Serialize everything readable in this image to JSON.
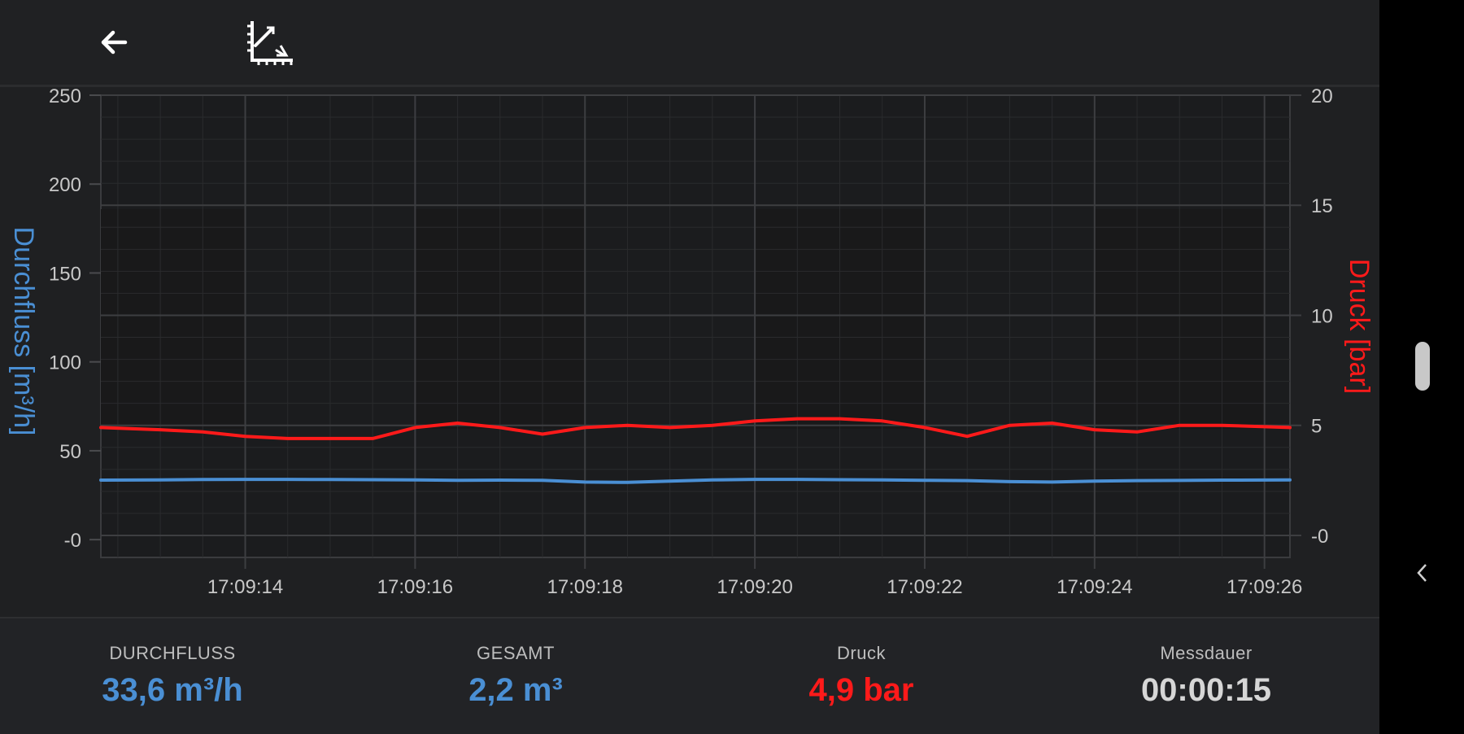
{
  "toolbar": {
    "back_icon": "arrow-left-icon",
    "axes_icon": "chart-axes-icon"
  },
  "colors": {
    "flow": "#4a8fd4",
    "pressure": "#ff1a1a",
    "value_neutral": "#d6d6d6"
  },
  "chart_data": {
    "type": "line",
    "x": [
      "17:09:12.3",
      "17:09:13.0",
      "17:09:13.5",
      "17:09:14.0",
      "17:09:14.5",
      "17:09:15.0",
      "17:09:15.5",
      "17:09:16.0",
      "17:09:16.5",
      "17:09:17.0",
      "17:09:17.5",
      "17:09:18.0",
      "17:09:18.5",
      "17:09:19.0",
      "17:09:19.5",
      "17:09:20.0",
      "17:09:20.5",
      "17:09:21.0",
      "17:09:21.5",
      "17:09:22.0",
      "17:09:22.5",
      "17:09:23.0",
      "17:09:23.5",
      "17:09:24.0",
      "17:09:24.5",
      "17:09:25.0",
      "17:09:25.5",
      "17:09:26.3"
    ],
    "x_ticks": [
      "17:09:14",
      "17:09:16",
      "17:09:18",
      "17:09:20",
      "17:09:22",
      "17:09:24",
      "17:09:26"
    ],
    "series": [
      {
        "name": "Durchfluss [m³/h]",
        "axis": "left",
        "values": [
          33.5,
          33.6,
          33.8,
          33.9,
          33.9,
          33.8,
          33.7,
          33.6,
          33.4,
          33.5,
          33.4,
          32.4,
          32.2,
          32.9,
          33.6,
          33.9,
          33.9,
          33.7,
          33.6,
          33.4,
          33.2,
          32.6,
          32.4,
          32.9,
          33.2,
          33.3,
          33.5,
          33.6
        ]
      },
      {
        "name": "Druck [bar]",
        "axis": "right",
        "values": [
          4.9,
          4.8,
          4.7,
          4.5,
          4.4,
          4.4,
          4.4,
          4.9,
          5.1,
          4.9,
          4.6,
          4.9,
          5.0,
          4.9,
          5.0,
          5.2,
          5.3,
          5.3,
          5.2,
          4.9,
          4.5,
          5.0,
          5.1,
          4.8,
          4.7,
          5.0,
          5.0,
          4.9
        ]
      }
    ],
    "left_axis": {
      "label": "Durchfluss [m³/h]",
      "ylim": [
        -10,
        250
      ],
      "ticks": [
        "250",
        "200",
        "150",
        "100",
        "50",
        "-0"
      ],
      "tick_values": [
        250,
        200,
        150,
        100,
        50,
        0
      ]
    },
    "right_axis": {
      "label": "Druck [bar]",
      "ylim": [
        -1,
        20
      ],
      "ticks": [
        "20",
        "15",
        "10",
        "5",
        "-0"
      ],
      "tick_values": [
        20,
        15,
        10,
        5,
        0
      ]
    },
    "grid": true,
    "xlabel": ""
  },
  "stats": [
    {
      "label": "DURCHFLUSS",
      "value": "33,6 m³/h",
      "color": "#4a8fd4"
    },
    {
      "label": "GESAMT",
      "value": "2,2 m³",
      "color": "#4a8fd4"
    },
    {
      "label": "Druck",
      "value": "4,9 bar",
      "color": "#ff1a1a"
    },
    {
      "label": "Messdauer",
      "value": "00:00:15",
      "color": "#d6d6d6"
    }
  ],
  "system": {
    "nav_back_icon": "chevron-left-icon",
    "scroll_indicator": "scroll-handle-icon"
  }
}
